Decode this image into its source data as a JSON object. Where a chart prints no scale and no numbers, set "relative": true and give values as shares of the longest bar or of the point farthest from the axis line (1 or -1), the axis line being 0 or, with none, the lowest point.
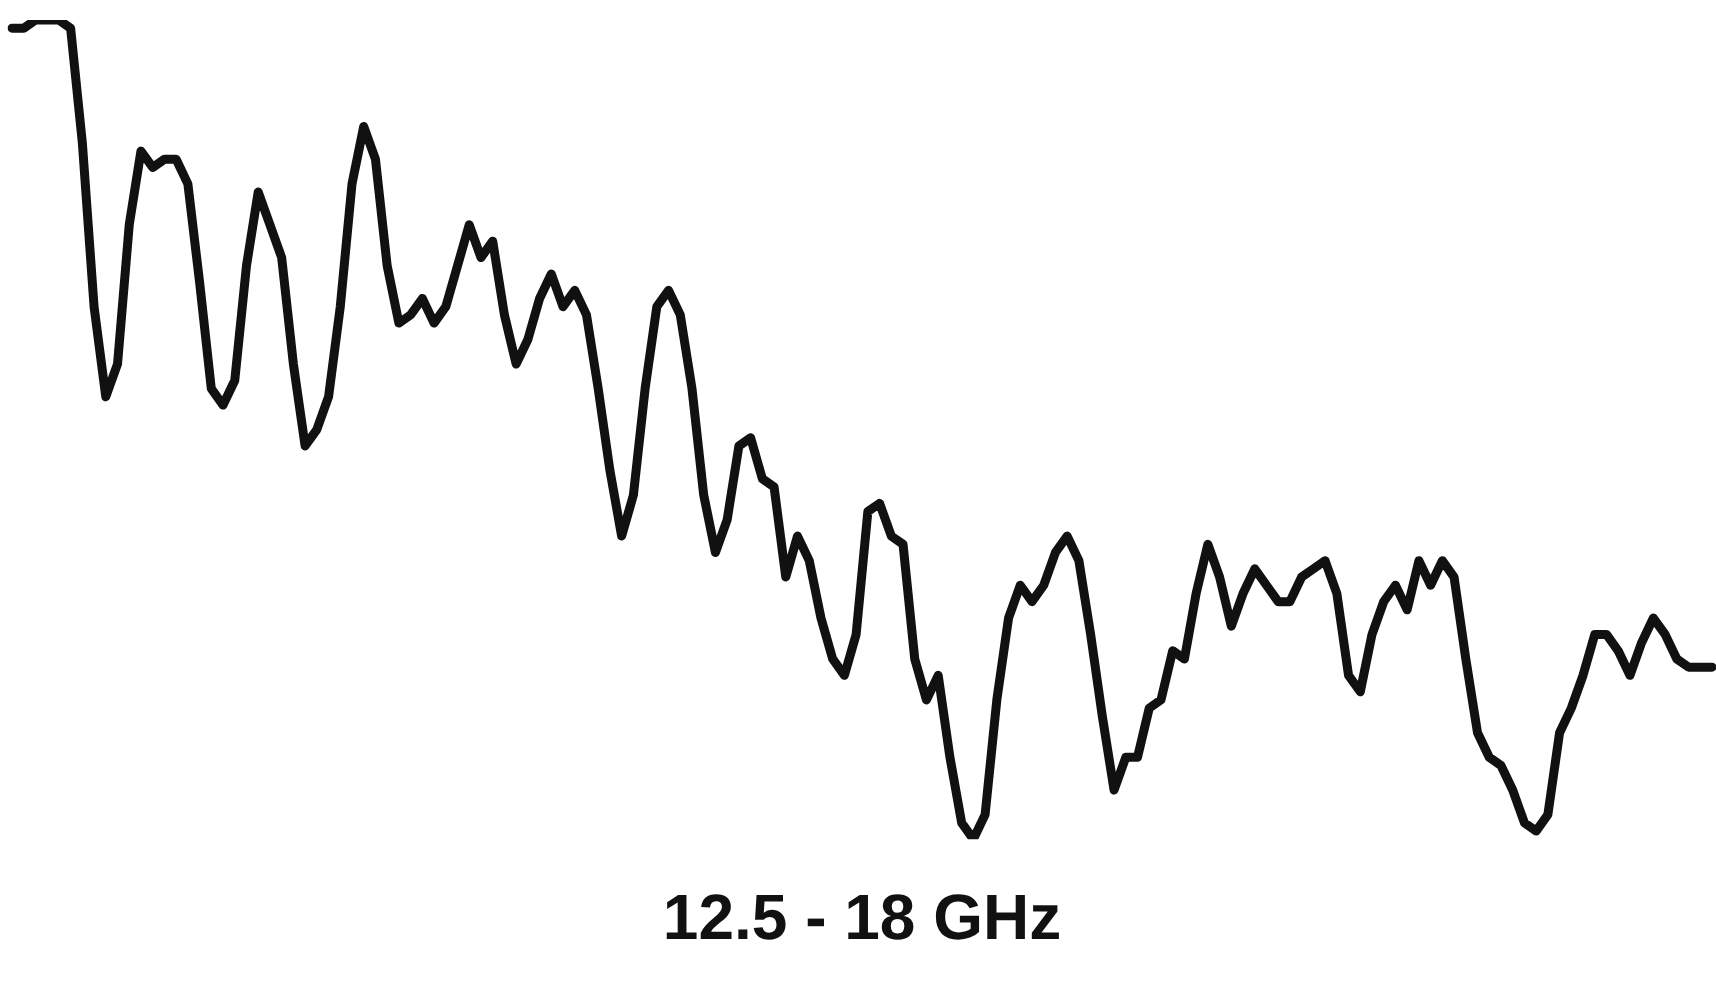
{
  "chart_data": {
    "type": "line",
    "xlabel": "12.5 - 18 GHz",
    "relative": true,
    "color": "#111111",
    "categories": [
      null,
      null,
      null,
      null,
      null,
      null,
      null,
      null,
      null,
      null,
      null,
      null,
      null,
      null,
      null,
      null,
      null,
      null,
      null,
      null,
      null,
      null,
      null,
      null,
      null,
      null,
      null,
      null,
      null,
      null,
      null,
      null,
      null,
      null,
      null,
      null,
      null,
      null,
      null,
      null,
      null,
      null,
      null,
      null,
      null,
      null,
      null,
      null,
      null,
      null,
      null,
      null,
      null,
      null,
      null,
      null,
      null,
      null,
      null,
      null,
      null,
      null,
      null,
      null,
      null,
      null,
      null,
      null,
      null,
      null,
      null,
      null,
      null,
      null,
      null,
      null,
      null,
      null,
      null,
      null,
      null,
      null,
      null,
      null,
      null,
      null,
      null,
      null,
      null,
      null,
      null,
      null,
      null,
      null,
      null,
      null,
      null,
      null,
      null,
      null,
      null,
      null,
      null,
      null,
      null,
      null,
      null,
      null,
      null,
      null,
      null,
      null,
      null,
      null,
      null,
      null,
      null,
      null,
      null,
      null,
      null,
      null,
      null,
      null,
      null,
      null,
      null,
      null,
      null,
      null,
      null,
      null,
      null,
      null,
      null,
      null,
      null,
      null,
      null,
      null,
      null,
      null,
      null,
      null,
      null,
      null
    ],
    "values": [
      0.99,
      0.99,
      1.0,
      1.0,
      1.0,
      0.99,
      0.85,
      0.65,
      0.54,
      0.58,
      0.75,
      0.84,
      0.82,
      0.83,
      0.83,
      0.8,
      0.68,
      0.55,
      0.53,
      0.56,
      0.7,
      0.79,
      0.75,
      0.71,
      0.58,
      0.48,
      0.5,
      0.54,
      0.65,
      0.8,
      0.87,
      0.83,
      0.7,
      0.63,
      0.64,
      0.66,
      0.63,
      0.65,
      0.7,
      0.75,
      0.71,
      0.73,
      0.64,
      0.58,
      0.61,
      0.66,
      0.69,
      0.65,
      0.67,
      0.64,
      0.55,
      0.45,
      0.37,
      0.42,
      0.55,
      0.65,
      0.67,
      0.64,
      0.55,
      0.42,
      0.35,
      0.39,
      0.48,
      0.49,
      0.44,
      0.43,
      0.32,
      0.37,
      0.34,
      0.27,
      0.22,
      0.2,
      0.25,
      0.4,
      0.41,
      0.37,
      0.36,
      0.22,
      0.17,
      0.2,
      0.1,
      0.02,
      0,
      0.03,
      0.17,
      0.27,
      0.31,
      0.29,
      0.31,
      0.35,
      0.37,
      0.34,
      0.25,
      0.15,
      0.06,
      0.1,
      0.1,
      0.16,
      0.17,
      0.23,
      0.22,
      0.3,
      0.36,
      0.32,
      0.26,
      0.3,
      0.33,
      0.31,
      0.29,
      0.29,
      0.32,
      0.33,
      0.34,
      0.3,
      0.2,
      0.18,
      0.25,
      0.29,
      0.31,
      0.28,
      0.34,
      0.31,
      0.34,
      0.32,
      0.22,
      0.13,
      0.1,
      0.09,
      0.06,
      0.02,
      0.01,
      0.03,
      0.13,
      0.16,
      0.2,
      0.25,
      0.25,
      0.23,
      0.2,
      0.24,
      0.27,
      0.25,
      0.22,
      0.21,
      0.21,
      0.21
    ]
  }
}
